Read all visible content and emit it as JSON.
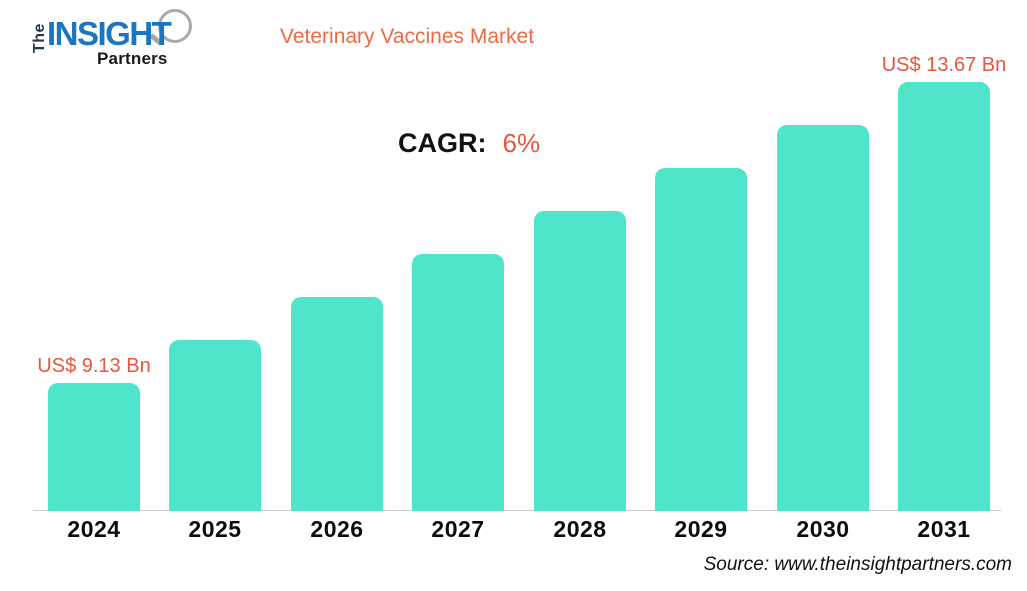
{
  "logo": {
    "the": "The",
    "insight": "INSIGHT",
    "partners": "Partners"
  },
  "header": {
    "title": "Veterinary Vaccines Market"
  },
  "cagr": {
    "label": "CAGR:",
    "value": "6%"
  },
  "chart_data": {
    "type": "bar",
    "title": "Veterinary Vaccines Market",
    "categories": [
      "2024",
      "2025",
      "2026",
      "2027",
      "2028",
      "2029",
      "2030",
      "2031"
    ],
    "values": [
      9.13,
      9.68,
      10.26,
      10.87,
      11.53,
      12.22,
      12.95,
      13.67
    ],
    "unit": "US$ Bn",
    "xlabel": "",
    "ylabel": "",
    "cagr_percent": 6,
    "gridlines": false,
    "legend": false,
    "value_labels": [
      {
        "index": 0,
        "text": "US$ 9.13 Bn"
      },
      {
        "index": 7,
        "text": "US$ 13.67 Bn"
      }
    ],
    "bar_color": "#4FE5CB",
    "label_color": "#E8553C"
  },
  "footer": {
    "source": "Source: www.theinsightpartners.com"
  },
  "colors": {
    "accent_orange": "#E8553C",
    "title_orange": "#EF6A44",
    "bar_teal": "#4FE5CB",
    "logo_blue": "#1B76C2",
    "logo_navy": "#22364E",
    "axis_gray": "#C9C9C9"
  }
}
